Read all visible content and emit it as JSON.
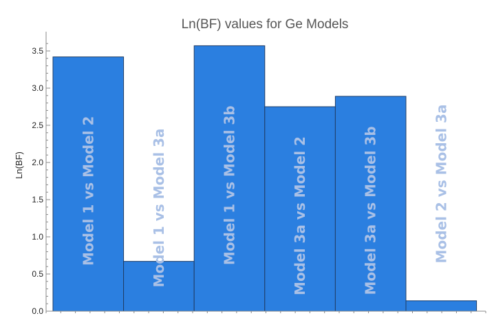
{
  "chart_data": {
    "type": "bar",
    "title": "Ln(BF) values for Ge Models",
    "xlabel": "",
    "ylabel": "Ln(BF)",
    "ylim": [
      0,
      3.6
    ],
    "yticks": [
      0.0,
      0.5,
      1.0,
      1.5,
      2.0,
      2.5,
      3.0,
      3.5
    ],
    "ytick_labels": [
      "0.0",
      "0.5",
      "1.0",
      "1.5",
      "2.0",
      "2.5",
      "3.0",
      "3.5"
    ],
    "categories": [
      "Model 1 vs Model 2",
      "Model 1 vs Model 3a",
      "Model 1 vs Model 3b",
      "Model 3a vs Model 2",
      "Model 3a vs Model 3b",
      "Model 2 vs Model 3a"
    ],
    "values": [
      3.42,
      0.67,
      3.57,
      2.75,
      2.89,
      0.14
    ],
    "grid": false,
    "bar_color": "#2b7fe0",
    "bar_edge_color": "#1f3d66",
    "label_color": "#a9c0e6"
  }
}
